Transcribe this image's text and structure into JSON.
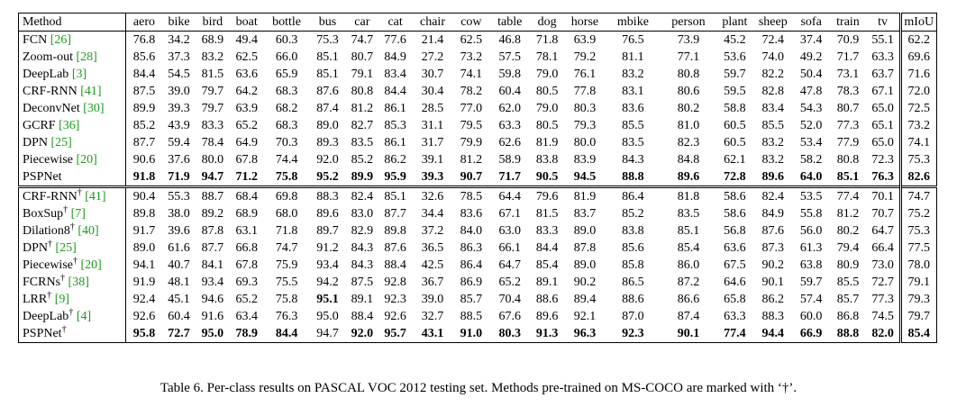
{
  "table": {
    "header": [
      "Method",
      "aero",
      "bike",
      "bird",
      "boat",
      "bottle",
      "bus",
      "car",
      "cat",
      "chair",
      "cow",
      "table",
      "dog",
      "horse",
      "mbike",
      "person",
      "plant",
      "sheep",
      "sofa",
      "train",
      "tv",
      "mIoU"
    ],
    "groups": [
      {
        "rows": [
          {
            "name": "FCN",
            "ref": "[26]",
            "cells": [
              "76.8",
              "34.2",
              "68.9",
              "49.4",
              "60.3",
              "75.3",
              "74.7",
              "77.6",
              "21.4",
              "62.5",
              "46.8",
              "71.8",
              "63.9",
              "76.5",
              "73.9",
              "45.2",
              "72.4",
              "37.4",
              "70.9",
              "55.1",
              "62.2"
            ]
          },
          {
            "name": "Zoom-out",
            "ref": "[28]",
            "cells": [
              "85.6",
              "37.3",
              "83.2",
              "62.5",
              "66.0",
              "85.1",
              "80.7",
              "84.9",
              "27.2",
              "73.2",
              "57.5",
              "78.1",
              "79.2",
              "81.1",
              "77.1",
              "53.6",
              "74.0",
              "49.2",
              "71.7",
              "63.3",
              "69.6"
            ]
          },
          {
            "name": "DeepLab",
            "ref": "[3]",
            "cells": [
              "84.4",
              "54.5",
              "81.5",
              "63.6",
              "65.9",
              "85.1",
              "79.1",
              "83.4",
              "30.7",
              "74.1",
              "59.8",
              "79.0",
              "76.1",
              "83.2",
              "80.8",
              "59.7",
              "82.2",
              "50.4",
              "73.1",
              "63.7",
              "71.6"
            ]
          },
          {
            "name": "CRF-RNN",
            "ref": "[41]",
            "cells": [
              "87.5",
              "39.0",
              "79.7",
              "64.2",
              "68.3",
              "87.6",
              "80.8",
              "84.4",
              "30.4",
              "78.2",
              "60.4",
              "80.5",
              "77.8",
              "83.1",
              "80.6",
              "59.5",
              "82.8",
              "47.8",
              "78.3",
              "67.1",
              "72.0"
            ]
          },
          {
            "name": "DeconvNet",
            "ref": "[30]",
            "cells": [
              "89.9",
              "39.3",
              "79.7",
              "63.9",
              "68.2",
              "87.4",
              "81.2",
              "86.1",
              "28.5",
              "77.0",
              "62.0",
              "79.0",
              "80.3",
              "83.6",
              "80.2",
              "58.8",
              "83.4",
              "54.3",
              "80.7",
              "65.0",
              "72.5"
            ]
          },
          {
            "name": "GCRF",
            "ref": "[36]",
            "cells": [
              "85.2",
              "43.9",
              "83.3",
              "65.2",
              "68.3",
              "89.0",
              "82.7",
              "85.3",
              "31.1",
              "79.5",
              "63.3",
              "80.5",
              "79.3",
              "85.5",
              "81.0",
              "60.5",
              "85.5",
              "52.0",
              "77.3",
              "65.1",
              "73.2"
            ]
          },
          {
            "name": "DPN",
            "ref": "[25]",
            "cells": [
              "87.7",
              "59.4",
              "78.4",
              "64.9",
              "70.3",
              "89.3",
              "83.5",
              "86.1",
              "31.7",
              "79.9",
              "62.6",
              "81.9",
              "80.0",
              "83.5",
              "82.3",
              "60.5",
              "83.2",
              "53.4",
              "77.9",
              "65.0",
              "74.1"
            ]
          },
          {
            "name": "Piecewise",
            "ref": "[20]",
            "cells": [
              "90.6",
              "37.6",
              "80.0",
              "67.8",
              "74.4",
              "92.0",
              "85.2",
              "86.2",
              "39.1",
              "81.2",
              "58.9",
              "83.8",
              "83.9",
              "84.3",
              "84.8",
              "62.1",
              "83.2",
              "58.2",
              "80.8",
              "72.3",
              "75.3"
            ]
          },
          {
            "name": "PSPNet",
            "cells": [
              "91.8",
              "71.9",
              "94.7",
              "71.2",
              "75.8",
              "95.2",
              "89.9",
              "95.9",
              "39.3",
              "90.7",
              "71.7",
              "90.5",
              "94.5",
              "88.8",
              "89.6",
              "72.8",
              "89.6",
              "64.0",
              "85.1",
              "76.3",
              "82.6"
            ],
            "bold": [
              0,
              1,
              2,
              3,
              4,
              5,
              6,
              7,
              8,
              9,
              10,
              11,
              12,
              13,
              14,
              15,
              16,
              17,
              18,
              19,
              20
            ]
          }
        ]
      },
      {
        "rows": [
          {
            "name": "CRF-RNN",
            "dagger": "†",
            "ref": "[41]",
            "cells": [
              "90.4",
              "55.3",
              "88.7",
              "68.4",
              "69.8",
              "88.3",
              "82.4",
              "85.1",
              "32.6",
              "78.5",
              "64.4",
              "79.6",
              "81.9",
              "86.4",
              "81.8",
              "58.6",
              "82.4",
              "53.5",
              "77.4",
              "70.1",
              "74.7"
            ]
          },
          {
            "name": "BoxSup",
            "dagger": "†",
            "ref": "[7]",
            "cells": [
              "89.8",
              "38.0",
              "89.2",
              "68.9",
              "68.0",
              "89.6",
              "83.0",
              "87.7",
              "34.4",
              "83.6",
              "67.1",
              "81.5",
              "83.7",
              "85.2",
              "83.5",
              "58.6",
              "84.9",
              "55.8",
              "81.2",
              "70.7",
              "75.2"
            ]
          },
          {
            "name": "Dilation8",
            "dagger": "†",
            "ref": "[40]",
            "cells": [
              "91.7",
              "39.6",
              "87.8",
              "63.1",
              "71.8",
              "89.7",
              "82.9",
              "89.8",
              "37.2",
              "84.0",
              "63.0",
              "83.3",
              "89.0",
              "83.8",
              "85.1",
              "56.8",
              "87.6",
              "56.0",
              "80.2",
              "64.7",
              "75.3"
            ]
          },
          {
            "name": "DPN",
            "dagger": "†",
            "ref": "[25]",
            "cells": [
              "89.0",
              "61.6",
              "87.7",
              "66.8",
              "74.7",
              "91.2",
              "84.3",
              "87.6",
              "36.5",
              "86.3",
              "66.1",
              "84.4",
              "87.8",
              "85.6",
              "85.4",
              "63.6",
              "87.3",
              "61.3",
              "79.4",
              "66.4",
              "77.5"
            ]
          },
          {
            "name": "Piecewise",
            "dagger": "†",
            "ref": "[20]",
            "cells": [
              "94.1",
              "40.7",
              "84.1",
              "67.8",
              "75.9",
              "93.4",
              "84.3",
              "88.4",
              "42.5",
              "86.4",
              "64.7",
              "85.4",
              "89.0",
              "85.8",
              "86.0",
              "67.5",
              "90.2",
              "63.8",
              "80.9",
              "73.0",
              "78.0"
            ]
          },
          {
            "name": "FCRNs",
            "dagger": "†",
            "ref": "[38]",
            "cells": [
              "91.9",
              "48.1",
              "93.4",
              "69.3",
              "75.5",
              "94.2",
              "87.5",
              "92.8",
              "36.7",
              "86.9",
              "65.2",
              "89.1",
              "90.2",
              "86.5",
              "87.2",
              "64.6",
              "90.1",
              "59.7",
              "85.5",
              "72.7",
              "79.1"
            ]
          },
          {
            "name": "LRR",
            "dagger": "†",
            "ref": "[9]",
            "cells": [
              "92.4",
              "45.1",
              "94.6",
              "65.2",
              "75.8",
              "95.1",
              "89.1",
              "92.3",
              "39.0",
              "85.7",
              "70.4",
              "88.6",
              "89.4",
              "88.6",
              "86.6",
              "65.8",
              "86.2",
              "57.4",
              "85.7",
              "77.3",
              "79.3"
            ],
            "bold": [
              5
            ]
          },
          {
            "name": "DeepLab",
            "dagger": "†",
            "ref": "[4]",
            "cells": [
              "92.6",
              "60.4",
              "91.6",
              "63.4",
              "76.3",
              "95.0",
              "88.4",
              "92.6",
              "32.7",
              "88.5",
              "67.6",
              "89.6",
              "92.1",
              "87.0",
              "87.4",
              "63.3",
              "88.3",
              "60.0",
              "86.8",
              "74.5",
              "79.7"
            ]
          },
          {
            "name": "PSPNet",
            "dagger": "†",
            "cells": [
              "95.8",
              "72.7",
              "95.0",
              "78.9",
              "84.4",
              "94.7",
              "92.0",
              "95.7",
              "43.1",
              "91.0",
              "80.3",
              "91.3",
              "96.3",
              "92.3",
              "90.1",
              "77.4",
              "94.4",
              "66.9",
              "88.8",
              "82.0",
              "85.4"
            ],
            "bold": [
              0,
              1,
              2,
              3,
              4,
              6,
              7,
              8,
              9,
              10,
              11,
              12,
              13,
              14,
              15,
              16,
              17,
              18,
              19,
              20
            ]
          }
        ]
      }
    ]
  },
  "caption": "Table 6. Per-class results on PASCAL VOC 2012 testing set. Methods pre-trained on MS-COCO are marked with ‘†’."
}
